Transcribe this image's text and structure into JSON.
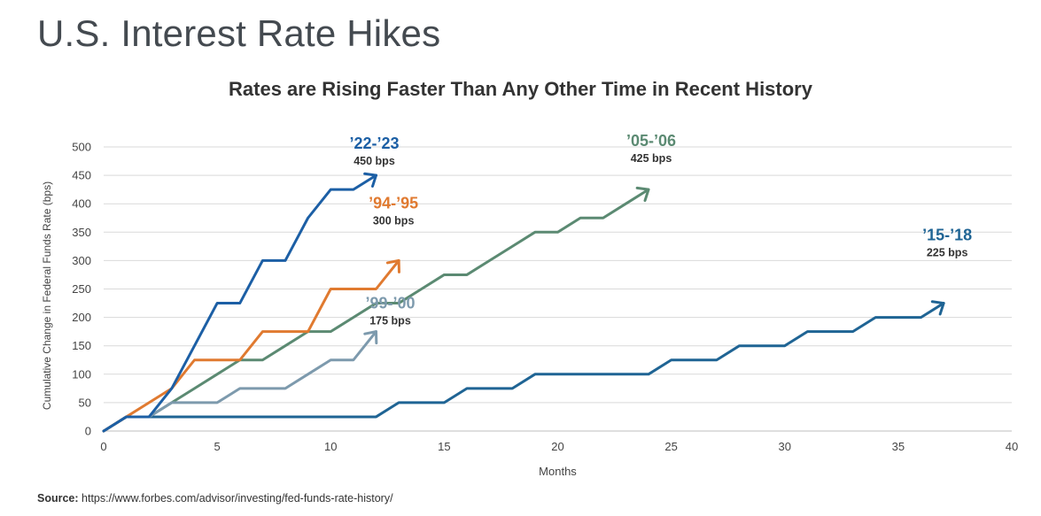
{
  "page": {
    "title": "U.S. Interest Rate Hikes",
    "source_label": "Source:",
    "source_url": "https://www.forbes.com/advisor/investing/fed-funds-rate-history/"
  },
  "chart_data": {
    "type": "line",
    "title": "Rates are Rising Faster Than Any Other Time in Recent History",
    "xlabel": "Months",
    "ylabel": "Cumulative Change in Federal Funds Rate (bps)",
    "xlim": [
      0,
      40
    ],
    "ylim": [
      0,
      500
    ],
    "xticks": [
      0,
      5,
      10,
      15,
      20,
      25,
      30,
      35,
      40
    ],
    "yticks": [
      0,
      50,
      100,
      150,
      200,
      250,
      300,
      350,
      400,
      450,
      500
    ],
    "grid": "horizontal",
    "series": [
      {
        "name": "’22-’23",
        "total_label": "450 bps",
        "color": "#1c5fa5",
        "x": [
          0,
          1,
          2,
          3,
          4,
          5,
          6,
          7,
          8,
          9,
          10,
          11,
          12
        ],
        "y": [
          0,
          25,
          25,
          75,
          150,
          225,
          225,
          300,
          300,
          375,
          425,
          425,
          450
        ]
      },
      {
        "name": "’94-’95",
        "total_label": "300 bps",
        "color": "#e07a30",
        "x": [
          0,
          1,
          2,
          3,
          4,
          5,
          6,
          7,
          8,
          9,
          10,
          11,
          12,
          13
        ],
        "y": [
          0,
          25,
          50,
          75,
          125,
          125,
          125,
          175,
          175,
          175,
          250,
          250,
          250,
          300
        ]
      },
      {
        "name": "’99-’00",
        "total_label": "175 bps",
        "color": "#7d9aad",
        "x": [
          0,
          1,
          2,
          3,
          4,
          5,
          6,
          7,
          8,
          9,
          10,
          11,
          12
        ],
        "y": [
          0,
          25,
          25,
          50,
          50,
          50,
          75,
          75,
          75,
          100,
          125,
          125,
          175
        ]
      },
      {
        "name": "’05-’06",
        "total_label": "425 bps",
        "color": "#5b8a72",
        "x": [
          0,
          1,
          2,
          3,
          4,
          5,
          6,
          7,
          8,
          9,
          10,
          11,
          12,
          13,
          14,
          15,
          16,
          17,
          18,
          19,
          20,
          21,
          22,
          23,
          24
        ],
        "y": [
          0,
          25,
          25,
          50,
          75,
          100,
          125,
          125,
          150,
          175,
          175,
          200,
          225,
          225,
          250,
          275,
          275,
          300,
          325,
          350,
          350,
          375,
          375,
          400,
          425
        ]
      },
      {
        "name": "’15-’18",
        "total_label": "225 bps",
        "color": "#1f6494",
        "x": [
          0,
          1,
          2,
          12,
          13,
          15,
          16,
          18,
          19,
          24,
          25,
          27,
          28,
          30,
          31,
          33,
          34,
          36,
          37
        ],
        "y": [
          0,
          25,
          25,
          25,
          50,
          50,
          75,
          75,
          100,
          100,
          125,
          125,
          150,
          150,
          175,
          175,
          200,
          200,
          225
        ]
      }
    ]
  }
}
